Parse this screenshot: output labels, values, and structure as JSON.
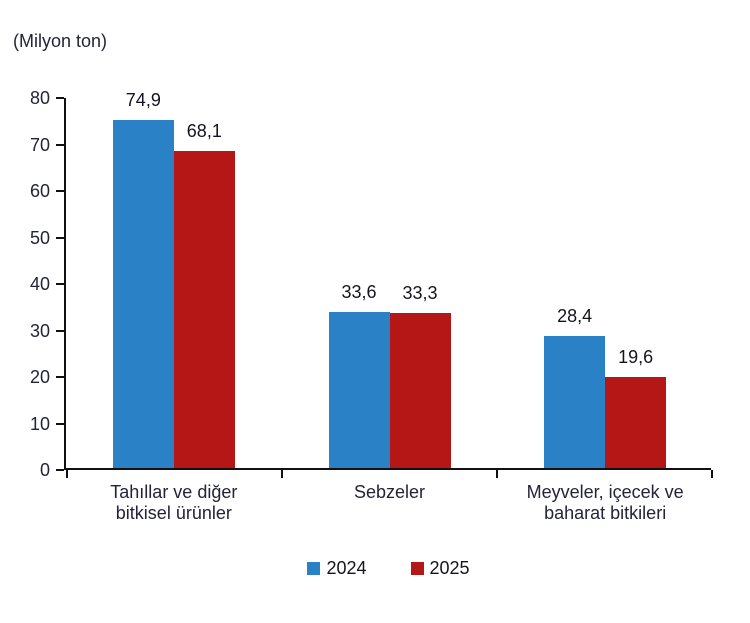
{
  "chart_data": {
    "type": "bar",
    "unit_label": "(Milyon ton)",
    "categories": [
      "Tahıllar ve diğer\nbitkisel ürünler",
      "Sebzeler",
      "Meyveler, içecek ve\nbaharat bitkileri"
    ],
    "series": [
      {
        "name": "2024",
        "color": "#2B81C5",
        "values": [
          74.9,
          33.6,
          28.4
        ],
        "labels": [
          "74,9",
          "33,6",
          "28,4"
        ]
      },
      {
        "name": "2025",
        "color": "#B51717",
        "values": [
          68.1,
          33.3,
          19.6
        ],
        "labels": [
          "68,1",
          "33,3",
          "19,6"
        ]
      }
    ],
    "ylim": [
      0,
      80
    ],
    "ytick_step": 10,
    "ytick_labels": [
      "0",
      "10",
      "20",
      "30",
      "40",
      "50",
      "60",
      "70",
      "80"
    ],
    "grid": false,
    "legend_position": "bottom",
    "axis_color": "#111111",
    "text_color": "#23233a"
  }
}
